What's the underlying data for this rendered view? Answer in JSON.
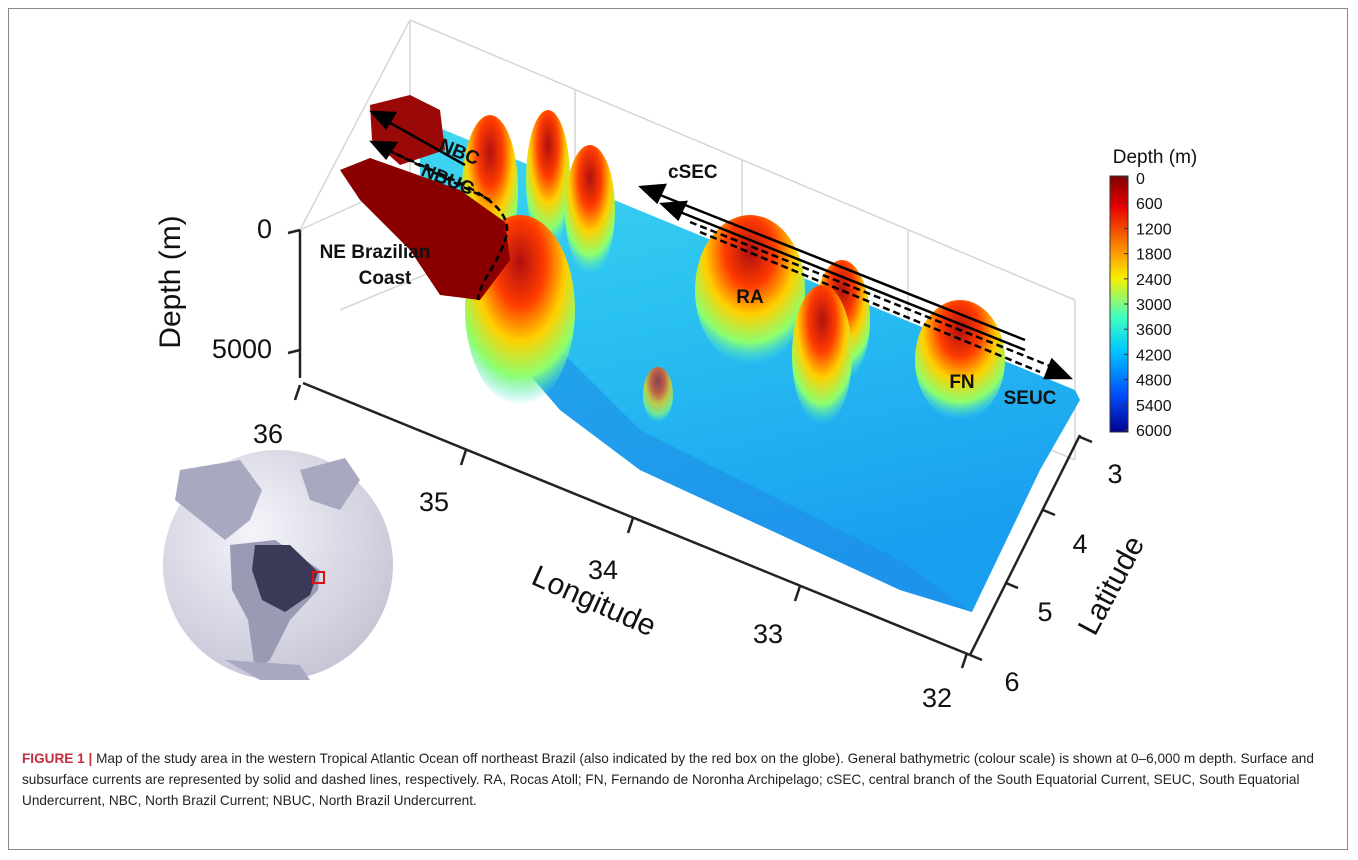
{
  "figure": {
    "axes": {
      "depth_label": "Depth (m)",
      "depth_ticks": [
        0,
        5000
      ],
      "longitude_label": "Longitude",
      "longitude_ticks": [
        36,
        35,
        34,
        33,
        32
      ],
      "latitude_label": "Latitude",
      "latitude_ticks": [
        3,
        4,
        5,
        6
      ]
    },
    "colorbar": {
      "title": "Depth (m)",
      "ticks": [
        0,
        600,
        1200,
        1800,
        2400,
        3000,
        3600,
        4200,
        4800,
        5400,
        6000
      ]
    },
    "annotations": {
      "nbc": "NBC",
      "nbuc": "NBUC",
      "csec": "cSEC",
      "coast_line1": "NE Brazilian",
      "coast_line2": "Coast",
      "ra": "RA",
      "fn": "FN",
      "seuc": "SEUC"
    }
  },
  "caption": {
    "label": "FIGURE 1 |",
    "text": "Map of the study area in the western Tropical Atlantic Ocean off northeast Brazil (also indicated by the red box on the globe). General bathymetric (colour scale) is shown at 0–6,000 m depth. Surface and subsurface currents are represented by solid and dashed lines, respectively. RA, Rocas Atoll; FN, Fernando de Noronha Archipelago; cSEC, central branch of the South Equatorial Current, SEUC, South Equatorial Undercurrent, NBC, North Brazil Current; NBUC, North Brazil Undercurrent."
  }
}
